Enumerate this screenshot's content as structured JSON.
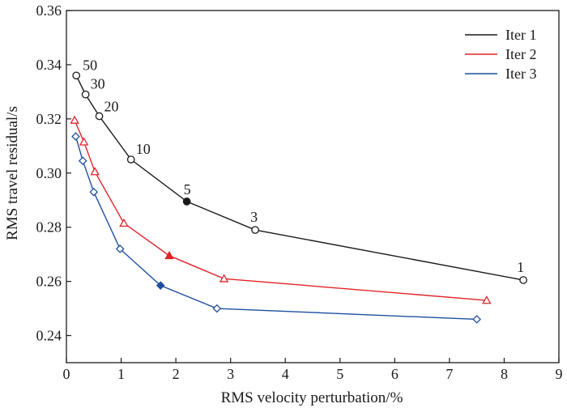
{
  "chart_data": {
    "type": "line",
    "title": "",
    "xlabel": "RMS velocity perturbation/%",
    "ylabel": "RMS travel residual/s",
    "xlim": [
      0,
      9
    ],
    "ylim": [
      0.23,
      0.36
    ],
    "xticks": [
      0,
      1,
      2,
      3,
      4,
      5,
      6,
      7,
      8,
      9
    ],
    "yticks": [
      0.24,
      0.26,
      0.28,
      0.3,
      0.32,
      0.34,
      0.36
    ],
    "ytick_labels": [
      "0.24",
      "0.26",
      "0.28",
      "0.30",
      "0.32",
      "0.34",
      "0.36"
    ],
    "grid": false,
    "legend_position": "top-right",
    "series": [
      {
        "name": "Iter 1",
        "color": "#1a1a1a",
        "marker": "circle",
        "x": [
          0.18,
          0.35,
          0.6,
          1.18,
          2.2,
          3.45,
          8.35
        ],
        "y": [
          0.336,
          0.329,
          0.321,
          0.305,
          0.2895,
          0.279,
          0.2605
        ],
        "filled_index": 4,
        "point_labels": [
          "50",
          "30",
          "20",
          "10",
          "5",
          "3",
          "1"
        ]
      },
      {
        "name": "Iter 2",
        "color": "#e0242a",
        "marker": "triangle",
        "x": [
          0.15,
          0.32,
          0.52,
          1.05,
          1.88,
          2.88,
          7.68
        ],
        "y": [
          0.3195,
          0.3115,
          0.3005,
          0.2815,
          0.2695,
          0.261,
          0.253
        ],
        "filled_index": 4
      },
      {
        "name": "Iter 3",
        "color": "#1f4e9e",
        "marker": "diamond",
        "x": [
          0.17,
          0.3,
          0.5,
          0.98,
          1.72,
          2.75,
          7.5
        ],
        "y": [
          0.3135,
          0.3045,
          0.293,
          0.272,
          0.2585,
          0.25,
          0.246
        ],
        "filled_index": 4
      }
    ]
  }
}
